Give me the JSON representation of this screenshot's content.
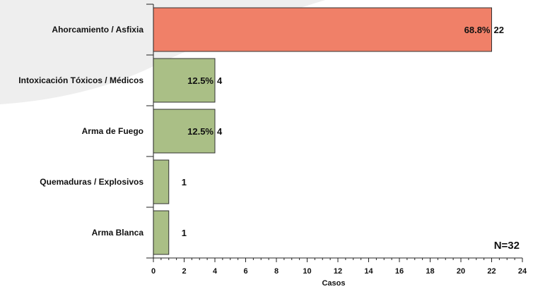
{
  "chart_data": {
    "type": "bar",
    "orientation": "horizontal",
    "categories": [
      "Ahorcamiento / Asfixia",
      "Intoxicación Tóxicos / Médicos",
      "Arma de Fuego",
      "Quemaduras / Explosivos",
      "Arma Blanca"
    ],
    "values": [
      22,
      4,
      4,
      1,
      1
    ],
    "percent_labels": [
      "68.8%",
      "12.5%",
      "12.5%",
      "",
      ""
    ],
    "xlabel": "Casos",
    "ylabel": "",
    "xlim": [
      0,
      24
    ],
    "xticks": [
      0,
      2,
      4,
      6,
      8,
      10,
      12,
      14,
      16,
      18,
      20,
      22,
      24
    ],
    "annotation": "N=32",
    "grid": false,
    "colors": {
      "highlight": "#f08068",
      "bar": "#aabf86",
      "bar_stroke": "#333333",
      "background_shape": "#eeeeee"
    }
  }
}
